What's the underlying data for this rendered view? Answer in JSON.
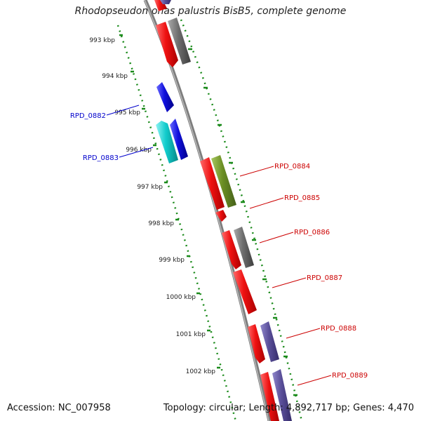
{
  "title": "Rhodopseudomonas palustris BisB5, complete genome",
  "footer": {
    "accession": "Accession: NC_007958",
    "summary": "Topology: circular; Length: 4,892,717 bp; Genes: 4,470"
  },
  "kbp_labels": [
    "993 kbp",
    "994 kbp",
    "995 kbp",
    "996 kbp",
    "997 kbp",
    "998 kbp",
    "999 kbp",
    "1000 kbp",
    "1001 kbp",
    "1002 kbp"
  ],
  "gene_labels": {
    "left": [
      "RPD_0882",
      "RPD_0883"
    ],
    "right": [
      "RPD_0884",
      "RPD_0885",
      "RPD_0886",
      "RPD_0887",
      "RPD_0888",
      "RPD_0889"
    ]
  },
  "colors": {
    "forward_label": "#0000cc",
    "reverse_label": "#cc0000",
    "red": "#ee1111",
    "blue": "#1010dd",
    "cyan": "#11cccc",
    "gray": "#6e6e6e",
    "olive": "#6b8e23",
    "slate": "#5a4f9a",
    "tick": "#1a8a1a",
    "backbone": "#808080"
  }
}
